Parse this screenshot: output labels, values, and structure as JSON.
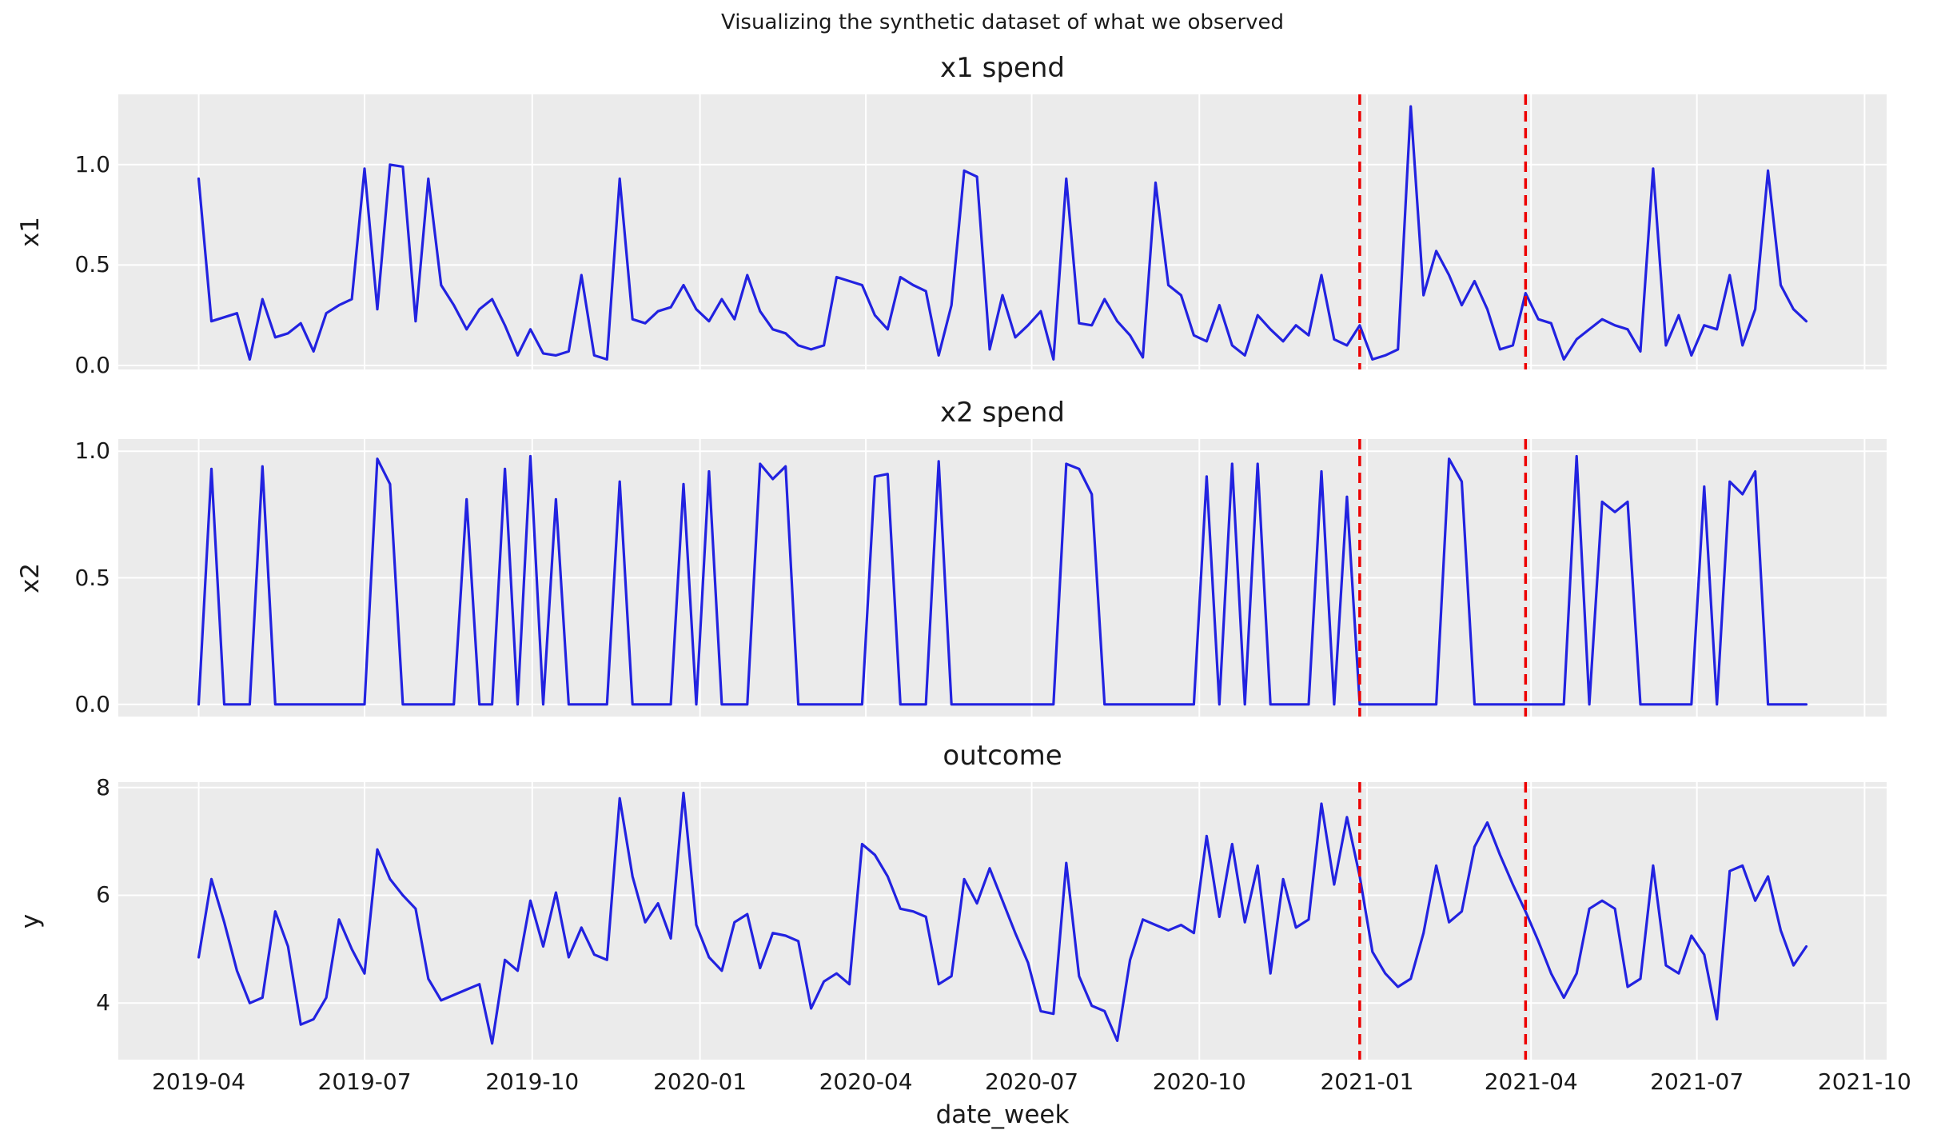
{
  "figure": {
    "suptitle": "Visualizing the synthetic dataset of what we observed",
    "xlabel": "date_week",
    "x_axis": {
      "start_date": "2019-04-01",
      "frequency": "weekly",
      "n_points": 127,
      "domain_weeks": [
        -6.3,
        132.3
      ]
    },
    "xticks": [
      {
        "label": "2019-04",
        "week": 0
      },
      {
        "label": "2019-07",
        "week": 13
      },
      {
        "label": "2019-10",
        "week": 26.14
      },
      {
        "label": "2020-01",
        "week": 39.29
      },
      {
        "label": "2020-04",
        "week": 52.29
      },
      {
        "label": "2020-07",
        "week": 65.29
      },
      {
        "label": "2020-10",
        "week": 78.43
      },
      {
        "label": "2021-01",
        "week": 91.57
      },
      {
        "label": "2021-04",
        "week": 104.43
      },
      {
        "label": "2021-07",
        "week": 117.43
      },
      {
        "label": "2021-10",
        "week": 130.57
      }
    ],
    "treatment_lines": [
      {
        "date": "2020-12-28",
        "week": 91
      },
      {
        "date": "2021-03-29",
        "week": 104
      }
    ],
    "colors": {
      "line": "#2222e0",
      "treatment_line": "#ed0000",
      "axes_background": "#ebebeb",
      "grid": "#ffffff",
      "text": "#1a1a1a",
      "figure_background": "#ffffff"
    }
  },
  "chart_data": [
    {
      "type": "line",
      "title": "x1 spend",
      "ylabel": "x1",
      "ylim": [
        -0.02,
        1.35
      ],
      "yticks": {
        "values": [
          0.0,
          0.5,
          1.0
        ],
        "labels": [
          "0.0",
          "0.5",
          "1.0"
        ]
      },
      "grid": true,
      "legend": "none",
      "values": [
        0.93,
        0.22,
        0.24,
        0.26,
        0.03,
        0.33,
        0.14,
        0.16,
        0.21,
        0.07,
        0.26,
        0.3,
        0.33,
        0.98,
        0.28,
        1.0,
        0.99,
        0.22,
        0.93,
        0.4,
        0.3,
        0.18,
        0.28,
        0.33,
        0.2,
        0.05,
        0.18,
        0.06,
        0.05,
        0.07,
        0.45,
        0.05,
        0.03,
        0.93,
        0.23,
        0.21,
        0.27,
        0.29,
        0.4,
        0.28,
        0.22,
        0.33,
        0.23,
        0.45,
        0.27,
        0.18,
        0.16,
        0.1,
        0.08,
        0.1,
        0.44,
        0.42,
        0.4,
        0.25,
        0.18,
        0.44,
        0.4,
        0.37,
        0.05,
        0.3,
        0.97,
        0.94,
        0.08,
        0.35,
        0.14,
        0.2,
        0.27,
        0.03,
        0.93,
        0.21,
        0.2,
        0.33,
        0.22,
        0.15,
        0.04,
        0.91,
        0.4,
        0.35,
        0.15,
        0.12,
        0.3,
        0.1,
        0.05,
        0.25,
        0.18,
        0.12,
        0.2,
        0.15,
        0.45,
        0.13,
        0.1,
        0.2,
        0.03,
        0.05,
        0.08,
        1.29,
        0.35,
        0.57,
        0.45,
        0.3,
        0.42,
        0.28,
        0.08,
        0.1,
        0.36,
        0.23,
        0.21,
        0.03,
        0.13,
        0.18,
        0.23,
        0.2,
        0.18,
        0.07,
        0.98,
        0.1,
        0.25,
        0.05,
        0.2,
        0.18,
        0.45,
        0.1,
        0.28,
        0.97,
        0.4,
        0.28,
        0.22
      ]
    },
    {
      "type": "line",
      "title": "x2 spend",
      "ylabel": "x2",
      "ylim": [
        -0.048,
        1.048
      ],
      "yticks": {
        "values": [
          0.0,
          0.5,
          1.0
        ],
        "labels": [
          "0.0",
          "0.5",
          "1.0"
        ]
      },
      "grid": true,
      "legend": "none",
      "values": [
        0,
        0.93,
        0,
        0,
        0,
        0.94,
        0,
        0,
        0,
        0,
        0,
        0,
        0,
        0,
        0.97,
        0.87,
        0,
        0,
        0,
        0,
        0,
        0.81,
        0,
        0,
        0.93,
        0,
        0.98,
        0,
        0.81,
        0,
        0,
        0,
        0,
        0.88,
        0,
        0,
        0,
        0,
        0.87,
        0,
        0.92,
        0,
        0,
        0,
        0.95,
        0.89,
        0.94,
        0,
        0,
        0,
        0,
        0,
        0,
        0.9,
        0.91,
        0,
        0,
        0,
        0.96,
        0,
        0,
        0,
        0,
        0,
        0,
        0,
        0,
        0,
        0.95,
        0.93,
        0.83,
        0,
        0,
        0,
        0,
        0,
        0,
        0,
        0,
        0.9,
        0,
        0.95,
        0,
        0.95,
        0,
        0,
        0,
        0,
        0.92,
        0,
        0.82,
        0,
        0,
        0,
        0,
        0,
        0,
        0,
        0.97,
        0.88,
        0,
        0,
        0,
        0,
        0,
        0,
        0,
        0,
        0.98,
        0,
        0.8,
        0.76,
        0.8,
        0,
        0,
        0,
        0,
        0,
        0.86,
        0,
        0.88,
        0.83,
        0.92,
        0,
        0,
        0,
        0
      ]
    },
    {
      "type": "line",
      "title": "outcome",
      "ylabel": "y",
      "ylim": [
        2.95,
        8.1
      ],
      "yticks": {
        "values": [
          4,
          6,
          8
        ],
        "labels": [
          "4",
          "6",
          "8"
        ]
      },
      "grid": true,
      "legend": "none",
      "values": [
        4.85,
        6.3,
        5.5,
        4.6,
        4.0,
        4.1,
        5.7,
        5.05,
        3.6,
        3.7,
        4.1,
        5.55,
        5.0,
        4.55,
        6.85,
        6.3,
        6.0,
        5.75,
        4.45,
        4.05,
        4.15,
        4.25,
        4.35,
        3.25,
        4.8,
        4.6,
        5.9,
        5.05,
        6.05,
        4.85,
        5.4,
        4.9,
        4.8,
        7.8,
        6.35,
        5.5,
        5.85,
        5.2,
        7.9,
        5.45,
        4.85,
        4.6,
        5.5,
        5.65,
        4.65,
        5.3,
        5.25,
        5.15,
        3.9,
        4.4,
        4.55,
        4.35,
        6.95,
        6.75,
        6.35,
        5.75,
        5.7,
        5.6,
        4.35,
        4.5,
        6.3,
        5.85,
        6.5,
        5.9,
        5.3,
        4.75,
        3.85,
        3.8,
        6.6,
        4.5,
        3.95,
        3.85,
        3.3,
        4.8,
        5.55,
        5.45,
        5.35,
        5.45,
        5.3,
        7.1,
        5.6,
        6.95,
        5.5,
        6.55,
        4.55,
        6.3,
        5.4,
        5.55,
        7.7,
        6.2,
        7.45,
        6.35,
        4.95,
        4.55,
        4.3,
        4.45,
        5.3,
        6.55,
        5.5,
        5.7,
        6.9,
        7.35,
        6.75,
        6.2,
        5.7,
        5.15,
        4.55,
        4.1,
        4.55,
        5.75,
        5.9,
        5.75,
        4.3,
        4.45,
        6.55,
        4.7,
        4.55,
        5.25,
        4.9,
        3.7,
        6.45,
        6.55,
        5.9,
        6.35,
        5.35,
        4.7,
        5.05
      ]
    }
  ]
}
